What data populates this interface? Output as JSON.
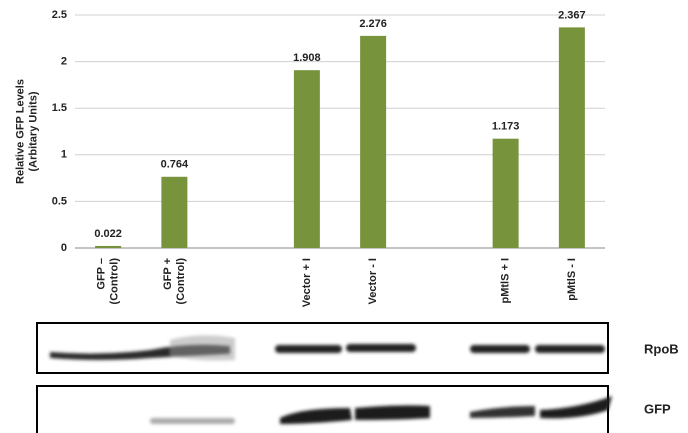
{
  "chart_data": {
    "type": "bar",
    "ylabel": "Relative GFP Levels\n(Arbitary Units)",
    "categories": [
      "GFP –\n(Control)",
      "GFP +\n(Control)",
      null,
      "Vector + I",
      "Vector  - I",
      null,
      "pMtlS + I",
      "pMtlS - I"
    ],
    "values": [
      0.022,
      0.764,
      null,
      1.908,
      2.276,
      null,
      1.173,
      2.367
    ],
    "color": "#77933c",
    "ylim": [
      0,
      2.5
    ],
    "yticks": [
      0,
      0.5,
      1,
      1.5,
      2,
      2.5
    ],
    "grid": true
  },
  "blot": {
    "rows": [
      {
        "label": "RpoB"
      },
      {
        "label": "GFP"
      }
    ]
  }
}
